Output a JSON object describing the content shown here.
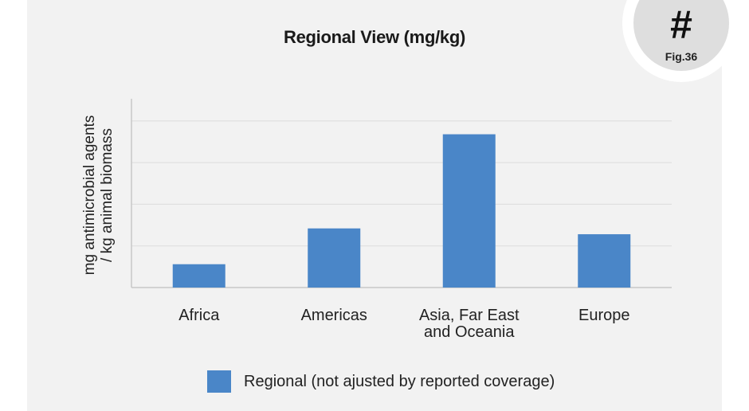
{
  "badge": {
    "symbol": "#",
    "figure": "Fig.36"
  },
  "colors": {
    "bar": "#4a86c8",
    "grid": "#dcdcdc",
    "axis": "#c8c8c8"
  },
  "chart_data": {
    "type": "bar",
    "title": "Regional View (mg/kg)",
    "ylabel_lines": [
      "mg antimicrobial agents",
      "/ kg animal biomass"
    ],
    "xlabel": "",
    "categories": [
      [
        "Africa"
      ],
      [
        "Americas"
      ],
      [
        "Asia, Far East",
        "and Oceania"
      ],
      [
        "Europe"
      ]
    ],
    "series": [
      {
        "name": "Regional (not ajusted by reported coverage)",
        "values": [
          28,
          71,
          184,
          64
        ]
      }
    ],
    "ylim": [
      0,
      240
    ],
    "ytick_values": [
      0,
      50,
      100,
      150,
      200
    ],
    "grid": true,
    "legend": "bottom"
  }
}
